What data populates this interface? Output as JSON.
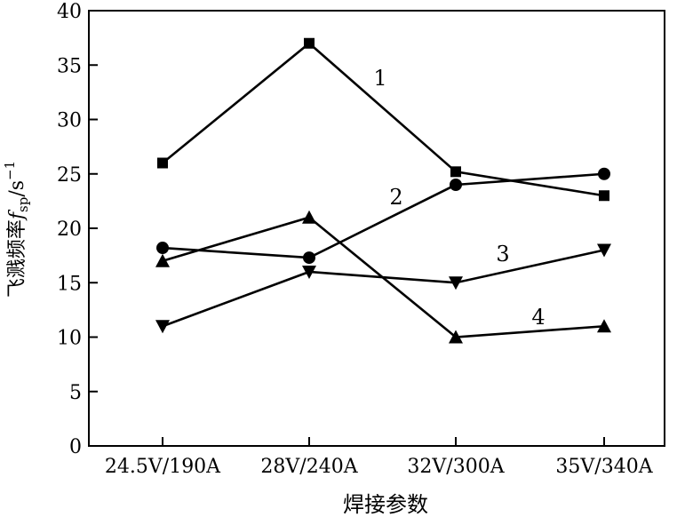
{
  "chart_data": {
    "type": "line",
    "categories": [
      "24.5V/190A",
      "28V/240A",
      "32V/300A",
      "35V/340A"
    ],
    "xlabel": "焊接参数",
    "ylabel": {
      "text": "飞溅频率",
      "symbol": "f",
      "symbol_sub": "sp",
      "unit_prefix": "/s",
      "unit_sup": "−1"
    },
    "ylim": [
      0,
      40
    ],
    "yticks": [
      "0",
      "5",
      "10",
      "15",
      "20",
      "25",
      "30",
      "35",
      "40"
    ],
    "grid": false,
    "legend": "inline-labels",
    "series": [
      {
        "label": "1",
        "marker": "square",
        "values": [
          26,
          37,
          25.2,
          23
        ]
      },
      {
        "label": "2",
        "marker": "circle",
        "values": [
          18.2,
          17.3,
          24,
          25
        ]
      },
      {
        "label": "3",
        "marker": "triangle-down",
        "values": [
          11,
          16,
          15,
          18
        ]
      },
      {
        "label": "4",
        "marker": "triangle-up",
        "values": [
          17,
          21,
          10,
          11
        ]
      }
    ],
    "colors": {
      "line": "#000000",
      "background": "#ffffff"
    }
  }
}
